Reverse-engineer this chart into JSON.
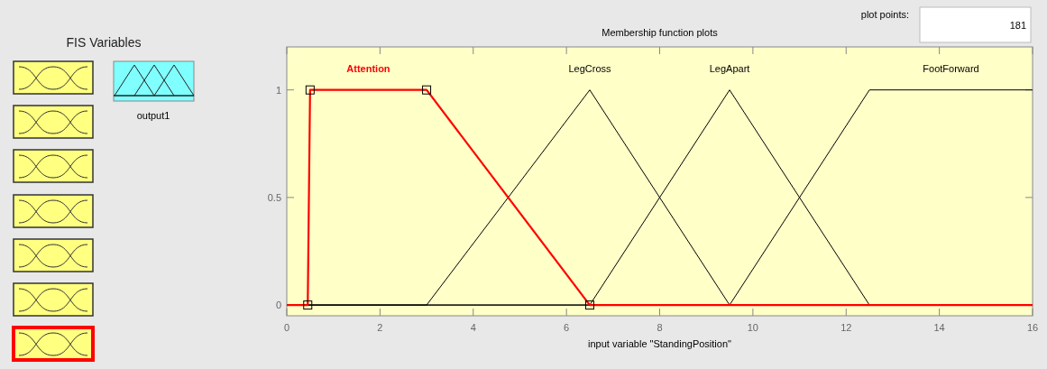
{
  "chart_data": {
    "type": "line",
    "title": "Membership function plots",
    "xlabel": "input variable \"StandingPosition\"",
    "xlim": [
      0,
      16
    ],
    "xticks": [
      0,
      2,
      4,
      6,
      8,
      10,
      12,
      14,
      16
    ],
    "ylim": [
      -0.05,
      1.2
    ],
    "yticks": [
      0,
      0.5,
      1
    ],
    "grid": false,
    "annotations": [
      "FIS Variables",
      "output1",
      "plot points:",
      "181"
    ],
    "series": [
      {
        "name": "Attention",
        "color": "#ff0000",
        "marker": "square",
        "x": [
          0,
          0.45,
          0.5,
          3,
          6.5,
          16
        ],
        "values": [
          0,
          0,
          1,
          1,
          0,
          0
        ]
      },
      {
        "name": "LegCross",
        "color": "#000000",
        "marker": "none",
        "x": [
          0,
          3,
          6.5,
          9.5,
          16
        ],
        "values": [
          0,
          0,
          1,
          0,
          0
        ]
      },
      {
        "name": "LegApart",
        "color": "#000000",
        "marker": "none",
        "x": [
          0,
          6.5,
          9.5,
          12.5,
          16
        ],
        "values": [
          0,
          0,
          1,
          0,
          0
        ]
      },
      {
        "name": "FootForward",
        "color": "#000000",
        "marker": "none",
        "x": [
          0,
          9.5,
          12.5,
          16
        ],
        "values": [
          0,
          0,
          1,
          1
        ]
      }
    ]
  }
}
